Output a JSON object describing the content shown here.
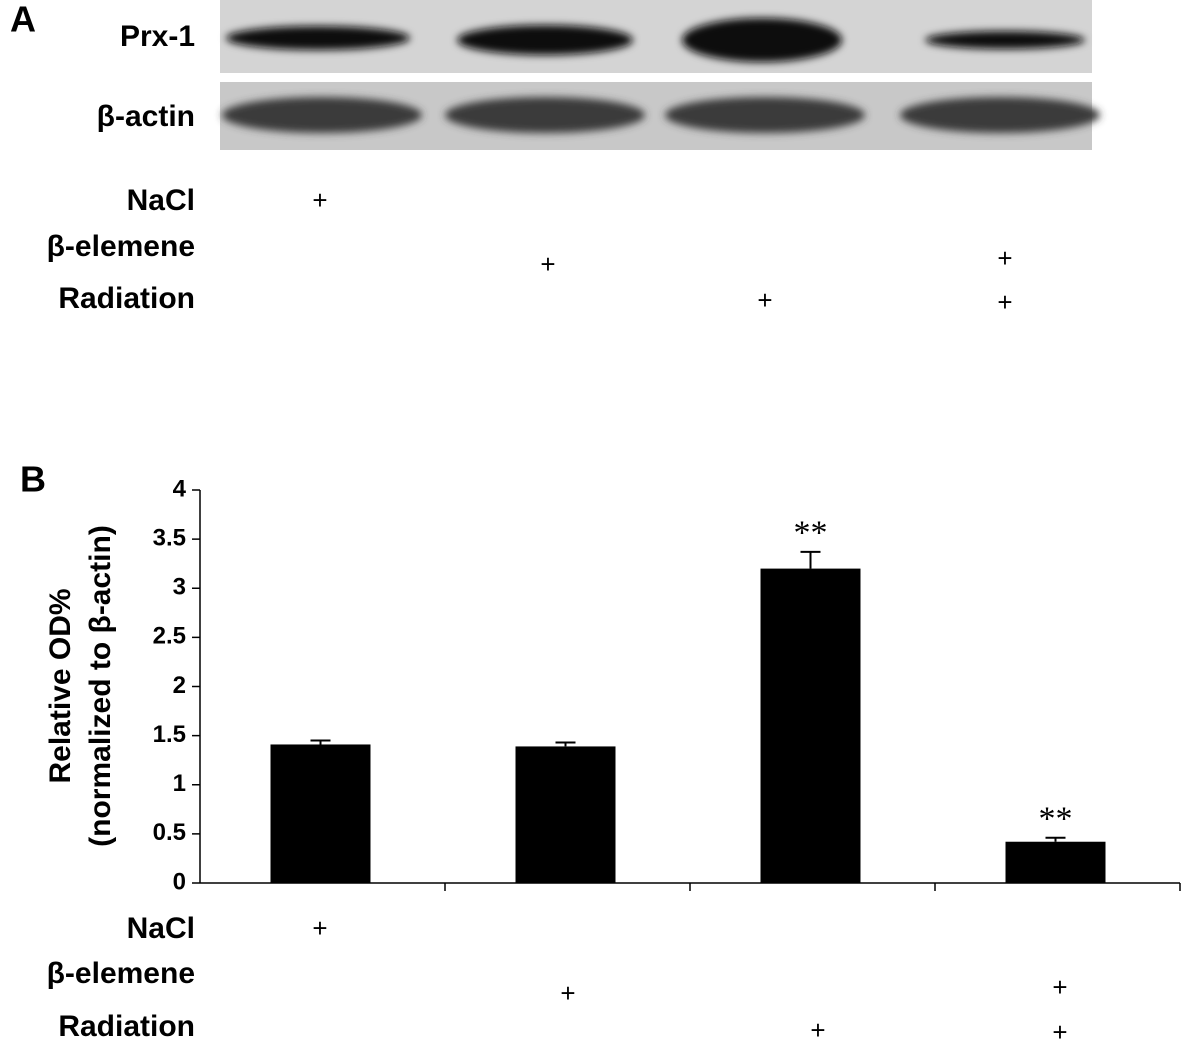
{
  "panel_a": {
    "label": "A",
    "bands": [
      "Prx-1",
      "β-actin"
    ],
    "conditions": [
      {
        "name": "NaCl",
        "cells": [
          "+",
          null,
          null,
          null
        ]
      },
      {
        "name": "β-elemene",
        "cells": [
          null,
          "+",
          null,
          "+"
        ]
      },
      {
        "name": "Radiation",
        "cells": [
          null,
          null,
          "+",
          "+"
        ]
      }
    ]
  },
  "chart_data": {
    "type": "bar",
    "panel_label": "B",
    "y_label": [
      "Relative OD%",
      "(normalized to β-actin)"
    ],
    "categories": [
      null,
      null,
      null,
      null
    ],
    "values": [
      1.41,
      1.39,
      3.2,
      0.42
    ],
    "errors": [
      0.04,
      0.04,
      0.17,
      0.04
    ],
    "annotations": [
      null,
      null,
      "**",
      "**"
    ],
    "color": "#000000",
    "ylim": [
      0,
      4
    ],
    "yticks": [
      0,
      0.5,
      1,
      1.5,
      2,
      2.5,
      3,
      3.5,
      4
    ],
    "conditions": [
      {
        "name": "NaCl",
        "cells": [
          "+",
          null,
          null,
          null
        ]
      },
      {
        "name": "β-elemene",
        "cells": [
          null,
          "+",
          null,
          "+"
        ]
      },
      {
        "name": "Radiation",
        "cells": [
          null,
          null,
          "+",
          "+"
        ]
      }
    ]
  }
}
